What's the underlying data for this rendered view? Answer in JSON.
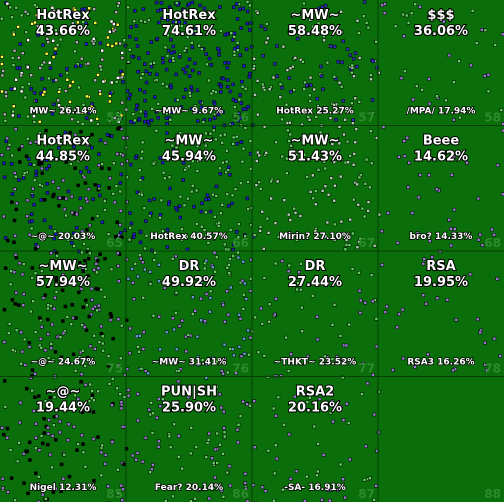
{
  "cells": [
    {
      "owner": "HotRex",
      "share": "43.66%",
      "runner_up": "MW~ 26.14%",
      "sector": "55"
    },
    {
      "owner": "HotRex",
      "share": "74.61%",
      "runner_up": "~MW~ 9.67%",
      "sector": "56"
    },
    {
      "owner": "~MW~",
      "share": "58.48%",
      "runner_up": "HotRex 25.27%",
      "sector": "57"
    },
    {
      "owner": "$$$",
      "share": "36.06%",
      "runner_up": "/MPA/ 17.94%",
      "sector": "58"
    },
    {
      "owner": "HotRex",
      "share": "44.85%",
      "runner_up": "~@~ 20.03%",
      "sector": "65"
    },
    {
      "owner": "~MW~",
      "share": "45.94%",
      "runner_up": "HotRex 40.57%",
      "sector": "66"
    },
    {
      "owner": "~MW~",
      "share": "51.43%",
      "runner_up": "Mirin? 27.10%",
      "sector": "67"
    },
    {
      "owner": "Beee",
      "share": "14.62%",
      "runner_up": "bro? 14.33%",
      "sector": "68"
    },
    {
      "owner": "~MW~",
      "share": "57.94%",
      "runner_up": "~@~ 24.67%",
      "sector": "75"
    },
    {
      "owner": "DR",
      "share": "49.92%",
      "runner_up": "~MW~ 31.41%",
      "sector": "76"
    },
    {
      "owner": "DR",
      "share": "27.44%",
      "runner_up": "~THKT~ 23.52%",
      "sector": "77"
    },
    {
      "owner": "RSA",
      "share": "19.95%",
      "runner_up": "RSA3 16.26%",
      "sector": "78"
    },
    {
      "owner": "~@~",
      "share": "19.44%",
      "runner_up": "Nigel 12.31%",
      "sector": "85"
    },
    {
      "owner": "PUN|SH",
      "share": "25.90%",
      "runner_up": "Fear? 20.14%",
      "sector": "86"
    },
    {
      "owner": "RSA2",
      "share": "20.16%",
      "runner_up": "-SA- 16.91%",
      "sector": "87"
    },
    {
      "sector": "88"
    }
  ]
}
